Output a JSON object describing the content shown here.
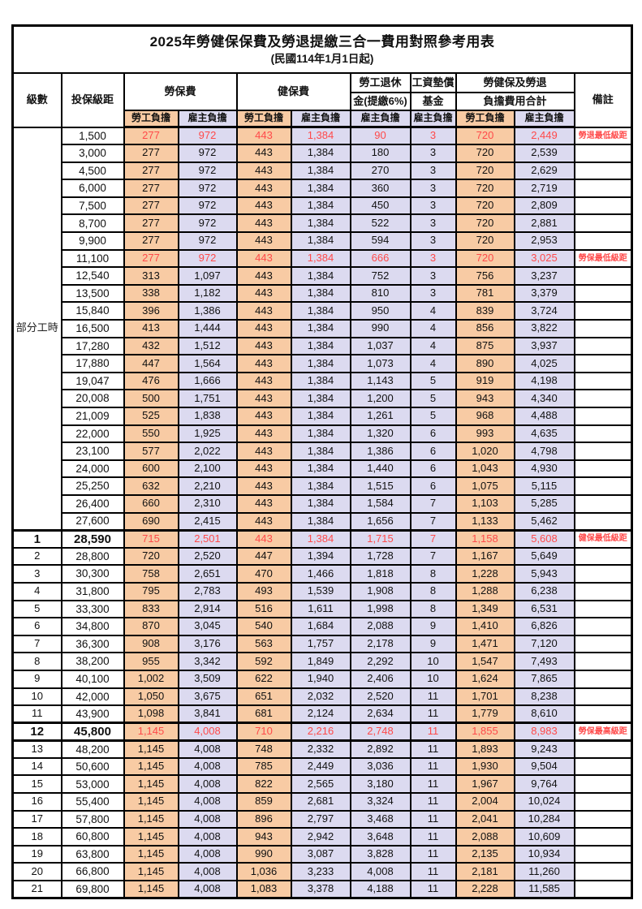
{
  "title": "2025年勞健保保費及勞退提繳三合一費用對照參考用表",
  "subtitle": "(民國114年1月1日起)",
  "colors": {
    "employee_fill": "#F8CBA4",
    "employer_fill": "#DCDAF0",
    "highlight_text": "#FF4A4A",
    "border": "#000000"
  },
  "header": {
    "level": "級數",
    "bracket": "投保級距",
    "labor_insurance": "勞保費",
    "health_insurance": "健保費",
    "pension_line1": "勞工退休",
    "pension_line2": "金(提繳6%)",
    "wage_fund_line1": "工資墊償",
    "wage_fund_line2": "基金",
    "total_line1": "勞健保及勞退",
    "total_line2": "負擔費用合計",
    "remark": "備註",
    "employee": "勞工負擔",
    "employer": "雇主負擔"
  },
  "part_time_label": "部分工時",
  "rows": [
    {
      "level": "",
      "bracket": "1,500",
      "labor_emp": "277",
      "labor_er": "972",
      "health_emp": "443",
      "health_er": "1,384",
      "pension_er": "90",
      "fund_er": "3",
      "total_emp": "720",
      "total_er": "2,449",
      "remark": "勞退最低級距",
      "red": true,
      "bold": false,
      "thick_top": false,
      "thick_bottom": false
    },
    {
      "level": "",
      "bracket": "3,000",
      "labor_emp": "277",
      "labor_er": "972",
      "health_emp": "443",
      "health_er": "1,384",
      "pension_er": "180",
      "fund_er": "3",
      "total_emp": "720",
      "total_er": "2,539",
      "remark": "",
      "red": false,
      "bold": false,
      "thick_top": false,
      "thick_bottom": false
    },
    {
      "level": "",
      "bracket": "4,500",
      "labor_emp": "277",
      "labor_er": "972",
      "health_emp": "443",
      "health_er": "1,384",
      "pension_er": "270",
      "fund_er": "3",
      "total_emp": "720",
      "total_er": "2,629",
      "remark": "",
      "red": false,
      "bold": false,
      "thick_top": false,
      "thick_bottom": false
    },
    {
      "level": "",
      "bracket": "6,000",
      "labor_emp": "277",
      "labor_er": "972",
      "health_emp": "443",
      "health_er": "1,384",
      "pension_er": "360",
      "fund_er": "3",
      "total_emp": "720",
      "total_er": "2,719",
      "remark": "",
      "red": false,
      "bold": false,
      "thick_top": false,
      "thick_bottom": false
    },
    {
      "level": "",
      "bracket": "7,500",
      "labor_emp": "277",
      "labor_er": "972",
      "health_emp": "443",
      "health_er": "1,384",
      "pension_er": "450",
      "fund_er": "3",
      "total_emp": "720",
      "total_er": "2,809",
      "remark": "",
      "red": false,
      "bold": false,
      "thick_top": false,
      "thick_bottom": false
    },
    {
      "level": "",
      "bracket": "8,700",
      "labor_emp": "277",
      "labor_er": "972",
      "health_emp": "443",
      "health_er": "1,384",
      "pension_er": "522",
      "fund_er": "3",
      "total_emp": "720",
      "total_er": "2,881",
      "remark": "",
      "red": false,
      "bold": false,
      "thick_top": false,
      "thick_bottom": false
    },
    {
      "level": "",
      "bracket": "9,900",
      "labor_emp": "277",
      "labor_er": "972",
      "health_emp": "443",
      "health_er": "1,384",
      "pension_er": "594",
      "fund_er": "3",
      "total_emp": "720",
      "total_er": "2,953",
      "remark": "",
      "red": false,
      "bold": false,
      "thick_top": false,
      "thick_bottom": false
    },
    {
      "level": "",
      "bracket": "11,100",
      "labor_emp": "277",
      "labor_er": "972",
      "health_emp": "443",
      "health_er": "1,384",
      "pension_er": "666",
      "fund_er": "3",
      "total_emp": "720",
      "total_er": "3,025",
      "remark": "勞保最低級距",
      "red": true,
      "bold": false,
      "thick_top": false,
      "thick_bottom": false
    },
    {
      "level": "",
      "bracket": "12,540",
      "labor_emp": "313",
      "labor_er": "1,097",
      "health_emp": "443",
      "health_er": "1,384",
      "pension_er": "752",
      "fund_er": "3",
      "total_emp": "756",
      "total_er": "3,237",
      "remark": "",
      "red": false,
      "bold": false,
      "thick_top": false,
      "thick_bottom": false
    },
    {
      "level": "",
      "bracket": "13,500",
      "labor_emp": "338",
      "labor_er": "1,182",
      "health_emp": "443",
      "health_er": "1,384",
      "pension_er": "810",
      "fund_er": "3",
      "total_emp": "781",
      "total_er": "3,379",
      "remark": "",
      "red": false,
      "bold": false,
      "thick_top": false,
      "thick_bottom": false
    },
    {
      "level": "",
      "bracket": "15,840",
      "labor_emp": "396",
      "labor_er": "1,386",
      "health_emp": "443",
      "health_er": "1,384",
      "pension_er": "950",
      "fund_er": "4",
      "total_emp": "839",
      "total_er": "3,724",
      "remark": "",
      "red": false,
      "bold": false,
      "thick_top": false,
      "thick_bottom": false
    },
    {
      "level": "",
      "bracket": "16,500",
      "labor_emp": "413",
      "labor_er": "1,444",
      "health_emp": "443",
      "health_er": "1,384",
      "pension_er": "990",
      "fund_er": "4",
      "total_emp": "856",
      "total_er": "3,822",
      "remark": "",
      "red": false,
      "bold": false,
      "thick_top": false,
      "thick_bottom": false
    },
    {
      "level": "",
      "bracket": "17,280",
      "labor_emp": "432",
      "labor_er": "1,512",
      "health_emp": "443",
      "health_er": "1,384",
      "pension_er": "1,037",
      "fund_er": "4",
      "total_emp": "875",
      "total_er": "3,937",
      "remark": "",
      "red": false,
      "bold": false,
      "thick_top": false,
      "thick_bottom": false
    },
    {
      "level": "",
      "bracket": "17,880",
      "labor_emp": "447",
      "labor_er": "1,564",
      "health_emp": "443",
      "health_er": "1,384",
      "pension_er": "1,073",
      "fund_er": "4",
      "total_emp": "890",
      "total_er": "4,025",
      "remark": "",
      "red": false,
      "bold": false,
      "thick_top": false,
      "thick_bottom": false
    },
    {
      "level": "",
      "bracket": "19,047",
      "labor_emp": "476",
      "labor_er": "1,666",
      "health_emp": "443",
      "health_er": "1,384",
      "pension_er": "1,143",
      "fund_er": "5",
      "total_emp": "919",
      "total_er": "4,198",
      "remark": "",
      "red": false,
      "bold": false,
      "thick_top": false,
      "thick_bottom": false
    },
    {
      "level": "",
      "bracket": "20,008",
      "labor_emp": "500",
      "labor_er": "1,751",
      "health_emp": "443",
      "health_er": "1,384",
      "pension_er": "1,200",
      "fund_er": "5",
      "total_emp": "943",
      "total_er": "4,340",
      "remark": "",
      "red": false,
      "bold": false,
      "thick_top": false,
      "thick_bottom": false
    },
    {
      "level": "",
      "bracket": "21,009",
      "labor_emp": "525",
      "labor_er": "1,838",
      "health_emp": "443",
      "health_er": "1,384",
      "pension_er": "1,261",
      "fund_er": "5",
      "total_emp": "968",
      "total_er": "4,488",
      "remark": "",
      "red": false,
      "bold": false,
      "thick_top": false,
      "thick_bottom": false
    },
    {
      "level": "",
      "bracket": "22,000",
      "labor_emp": "550",
      "labor_er": "1,925",
      "health_emp": "443",
      "health_er": "1,384",
      "pension_er": "1,320",
      "fund_er": "6",
      "total_emp": "993",
      "total_er": "4,635",
      "remark": "",
      "red": false,
      "bold": false,
      "thick_top": false,
      "thick_bottom": false
    },
    {
      "level": "",
      "bracket": "23,100",
      "labor_emp": "577",
      "labor_er": "2,022",
      "health_emp": "443",
      "health_er": "1,384",
      "pension_er": "1,386",
      "fund_er": "6",
      "total_emp": "1,020",
      "total_er": "4,798",
      "remark": "",
      "red": false,
      "bold": false,
      "thick_top": false,
      "thick_bottom": false
    },
    {
      "level": "",
      "bracket": "24,000",
      "labor_emp": "600",
      "labor_er": "2,100",
      "health_emp": "443",
      "health_er": "1,384",
      "pension_er": "1,440",
      "fund_er": "6",
      "total_emp": "1,043",
      "total_er": "4,930",
      "remark": "",
      "red": false,
      "bold": false,
      "thick_top": false,
      "thick_bottom": false
    },
    {
      "level": "",
      "bracket": "25,250",
      "labor_emp": "632",
      "labor_er": "2,210",
      "health_emp": "443",
      "health_er": "1,384",
      "pension_er": "1,515",
      "fund_er": "6",
      "total_emp": "1,075",
      "total_er": "5,115",
      "remark": "",
      "red": false,
      "bold": false,
      "thick_top": false,
      "thick_bottom": false
    },
    {
      "level": "",
      "bracket": "26,400",
      "labor_emp": "660",
      "labor_er": "2,310",
      "health_emp": "443",
      "health_er": "1,384",
      "pension_er": "1,584",
      "fund_er": "7",
      "total_emp": "1,103",
      "total_er": "5,285",
      "remark": "",
      "red": false,
      "bold": false,
      "thick_top": false,
      "thick_bottom": false
    },
    {
      "level": "",
      "bracket": "27,600",
      "labor_emp": "690",
      "labor_er": "2,415",
      "health_emp": "443",
      "health_er": "1,384",
      "pension_er": "1,656",
      "fund_er": "7",
      "total_emp": "1,133",
      "total_er": "5,462",
      "remark": "",
      "red": false,
      "bold": false,
      "thick_top": false,
      "thick_bottom": false
    },
    {
      "level": "1",
      "bracket": "28,590",
      "labor_emp": "715",
      "labor_er": "2,501",
      "health_emp": "443",
      "health_er": "1,384",
      "pension_er": "1,715",
      "fund_er": "7",
      "total_emp": "1,158",
      "total_er": "5,608",
      "remark": "健保最低級距",
      "red": true,
      "bold": true,
      "thick_top": true,
      "thick_bottom": false
    },
    {
      "level": "2",
      "bracket": "28,800",
      "labor_emp": "720",
      "labor_er": "2,520",
      "health_emp": "447",
      "health_er": "1,394",
      "pension_er": "1,728",
      "fund_er": "7",
      "total_emp": "1,167",
      "total_er": "5,649",
      "remark": "",
      "red": false,
      "bold": false,
      "thick_top": false,
      "thick_bottom": false
    },
    {
      "level": "3",
      "bracket": "30,300",
      "labor_emp": "758",
      "labor_er": "2,651",
      "health_emp": "470",
      "health_er": "1,466",
      "pension_er": "1,818",
      "fund_er": "8",
      "total_emp": "1,228",
      "total_er": "5,943",
      "remark": "",
      "red": false,
      "bold": false,
      "thick_top": false,
      "thick_bottom": false
    },
    {
      "level": "4",
      "bracket": "31,800",
      "labor_emp": "795",
      "labor_er": "2,783",
      "health_emp": "493",
      "health_er": "1,539",
      "pension_er": "1,908",
      "fund_er": "8",
      "total_emp": "1,288",
      "total_er": "6,238",
      "remark": "",
      "red": false,
      "bold": false,
      "thick_top": false,
      "thick_bottom": false
    },
    {
      "level": "5",
      "bracket": "33,300",
      "labor_emp": "833",
      "labor_er": "2,914",
      "health_emp": "516",
      "health_er": "1,611",
      "pension_er": "1,998",
      "fund_er": "8",
      "total_emp": "1,349",
      "total_er": "6,531",
      "remark": "",
      "red": false,
      "bold": false,
      "thick_top": false,
      "thick_bottom": false
    },
    {
      "level": "6",
      "bracket": "34,800",
      "labor_emp": "870",
      "labor_er": "3,045",
      "health_emp": "540",
      "health_er": "1,684",
      "pension_er": "2,088",
      "fund_er": "9",
      "total_emp": "1,410",
      "total_er": "6,826",
      "remark": "",
      "red": false,
      "bold": false,
      "thick_top": false,
      "thick_bottom": false
    },
    {
      "level": "7",
      "bracket": "36,300",
      "labor_emp": "908",
      "labor_er": "3,176",
      "health_emp": "563",
      "health_er": "1,757",
      "pension_er": "2,178",
      "fund_er": "9",
      "total_emp": "1,471",
      "total_er": "7,120",
      "remark": "",
      "red": false,
      "bold": false,
      "thick_top": false,
      "thick_bottom": false
    },
    {
      "level": "8",
      "bracket": "38,200",
      "labor_emp": "955",
      "labor_er": "3,342",
      "health_emp": "592",
      "health_er": "1,849",
      "pension_er": "2,292",
      "fund_er": "10",
      "total_emp": "1,547",
      "total_er": "7,493",
      "remark": "",
      "red": false,
      "bold": false,
      "thick_top": false,
      "thick_bottom": false
    },
    {
      "level": "9",
      "bracket": "40,100",
      "labor_emp": "1,002",
      "labor_er": "3,509",
      "health_emp": "622",
      "health_er": "1,940",
      "pension_er": "2,406",
      "fund_er": "10",
      "total_emp": "1,624",
      "total_er": "7,865",
      "remark": "",
      "red": false,
      "bold": false,
      "thick_top": false,
      "thick_bottom": false
    },
    {
      "level": "10",
      "bracket": "42,000",
      "labor_emp": "1,050",
      "labor_er": "3,675",
      "health_emp": "651",
      "health_er": "2,032",
      "pension_er": "2,520",
      "fund_er": "11",
      "total_emp": "1,701",
      "total_er": "8,238",
      "remark": "",
      "red": false,
      "bold": false,
      "thick_top": false,
      "thick_bottom": false
    },
    {
      "level": "11",
      "bracket": "43,900",
      "labor_emp": "1,098",
      "labor_er": "3,841",
      "health_emp": "681",
      "health_er": "2,124",
      "pension_er": "2,634",
      "fund_er": "11",
      "total_emp": "1,779",
      "total_er": "8,610",
      "remark": "",
      "red": false,
      "bold": false,
      "thick_top": false,
      "thick_bottom": false
    },
    {
      "level": "12",
      "bracket": "45,800",
      "labor_emp": "1,145",
      "labor_er": "4,008",
      "health_emp": "710",
      "health_er": "2,216",
      "pension_er": "2,748",
      "fund_er": "11",
      "total_emp": "1,855",
      "total_er": "8,983",
      "remark": "勞保最高級距",
      "red": true,
      "bold": true,
      "thick_top": true,
      "thick_bottom": true
    },
    {
      "level": "13",
      "bracket": "48,200",
      "labor_emp": "1,145",
      "labor_er": "4,008",
      "health_emp": "748",
      "health_er": "2,332",
      "pension_er": "2,892",
      "fund_er": "11",
      "total_emp": "1,893",
      "total_er": "9,243",
      "remark": "",
      "red": false,
      "bold": false,
      "thick_top": false,
      "thick_bottom": false
    },
    {
      "level": "14",
      "bracket": "50,600",
      "labor_emp": "1,145",
      "labor_er": "4,008",
      "health_emp": "785",
      "health_er": "2,449",
      "pension_er": "3,036",
      "fund_er": "11",
      "total_emp": "1,930",
      "total_er": "9,504",
      "remark": "",
      "red": false,
      "bold": false,
      "thick_top": false,
      "thick_bottom": false
    },
    {
      "level": "15",
      "bracket": "53,000",
      "labor_emp": "1,145",
      "labor_er": "4,008",
      "health_emp": "822",
      "health_er": "2,565",
      "pension_er": "3,180",
      "fund_er": "11",
      "total_emp": "1,967",
      "total_er": "9,764",
      "remark": "",
      "red": false,
      "bold": false,
      "thick_top": false,
      "thick_bottom": false
    },
    {
      "level": "16",
      "bracket": "55,400",
      "labor_emp": "1,145",
      "labor_er": "4,008",
      "health_emp": "859",
      "health_er": "2,681",
      "pension_er": "3,324",
      "fund_er": "11",
      "total_emp": "2,004",
      "total_er": "10,024",
      "remark": "",
      "red": false,
      "bold": false,
      "thick_top": false,
      "thick_bottom": false
    },
    {
      "level": "17",
      "bracket": "57,800",
      "labor_emp": "1,145",
      "labor_er": "4,008",
      "health_emp": "896",
      "health_er": "2,797",
      "pension_er": "3,468",
      "fund_er": "11",
      "total_emp": "2,041",
      "total_er": "10,284",
      "remark": "",
      "red": false,
      "bold": false,
      "thick_top": false,
      "thick_bottom": false
    },
    {
      "level": "18",
      "bracket": "60,800",
      "labor_emp": "1,145",
      "labor_er": "4,008",
      "health_emp": "943",
      "health_er": "2,942",
      "pension_er": "3,648",
      "fund_er": "11",
      "total_emp": "2,088",
      "total_er": "10,609",
      "remark": "",
      "red": false,
      "bold": false,
      "thick_top": false,
      "thick_bottom": false
    },
    {
      "level": "19",
      "bracket": "63,800",
      "labor_emp": "1,145",
      "labor_er": "4,008",
      "health_emp": "990",
      "health_er": "3,087",
      "pension_er": "3,828",
      "fund_er": "11",
      "total_emp": "2,135",
      "total_er": "10,934",
      "remark": "",
      "red": false,
      "bold": false,
      "thick_top": false,
      "thick_bottom": false
    },
    {
      "level": "20",
      "bracket": "66,800",
      "labor_emp": "1,145",
      "labor_er": "4,008",
      "health_emp": "1,036",
      "health_er": "3,233",
      "pension_er": "4,008",
      "fund_er": "11",
      "total_emp": "2,181",
      "total_er": "11,260",
      "remark": "",
      "red": false,
      "bold": false,
      "thick_top": false,
      "thick_bottom": false
    },
    {
      "level": "21",
      "bracket": "69,800",
      "labor_emp": "1,145",
      "labor_er": "4,008",
      "health_emp": "1,083",
      "health_er": "3,378",
      "pension_er": "4,188",
      "fund_er": "11",
      "total_emp": "2,228",
      "total_er": "11,585",
      "remark": "",
      "red": false,
      "bold": false,
      "thick_top": false,
      "thick_bottom": false
    }
  ]
}
